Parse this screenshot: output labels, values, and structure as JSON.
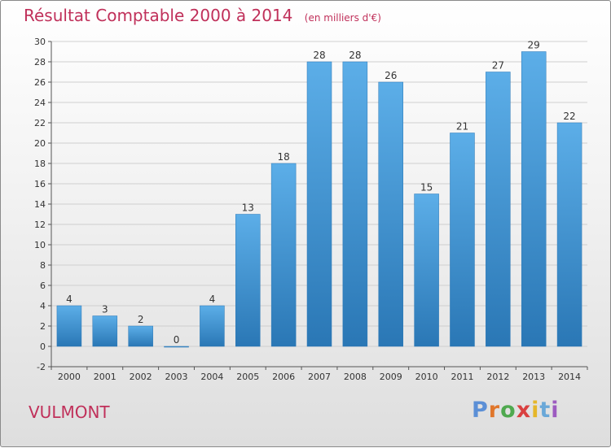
{
  "header": {
    "title": "Résultat Comptable 2000 à 2014",
    "subtitle": "(en milliers d'€)"
  },
  "footer": {
    "commune": "VULMONT",
    "logo_text": "Proxiti"
  },
  "colors": {
    "title": "#c0305a",
    "bar_top": "#5caee8",
    "bar_bottom": "#2a77b5",
    "logo": [
      "#5b8fd6",
      "#e0762b",
      "#4fa94f",
      "#d94040",
      "#e5b72a",
      "#6aa8d8",
      "#9d5bc0"
    ]
  },
  "chart_data": {
    "type": "bar",
    "categories": [
      "2000",
      "2001",
      "2002",
      "2003",
      "2004",
      "2005",
      "2006",
      "2007",
      "2008",
      "2009",
      "2010",
      "2011",
      "2012",
      "2013",
      "2014"
    ],
    "values": [
      4,
      3,
      2,
      0,
      4,
      13,
      18,
      28,
      28,
      26,
      15,
      21,
      27,
      29,
      22
    ],
    "title": "Résultat Comptable 2000 à 2014",
    "subtitle": "(en milliers d'€)",
    "xlabel": "",
    "ylabel": "",
    "ylim": [
      -2,
      30
    ],
    "yticks": [
      -2,
      0,
      2,
      4,
      6,
      8,
      10,
      12,
      14,
      16,
      18,
      20,
      22,
      24,
      26,
      28,
      30
    ],
    "grid": true
  }
}
